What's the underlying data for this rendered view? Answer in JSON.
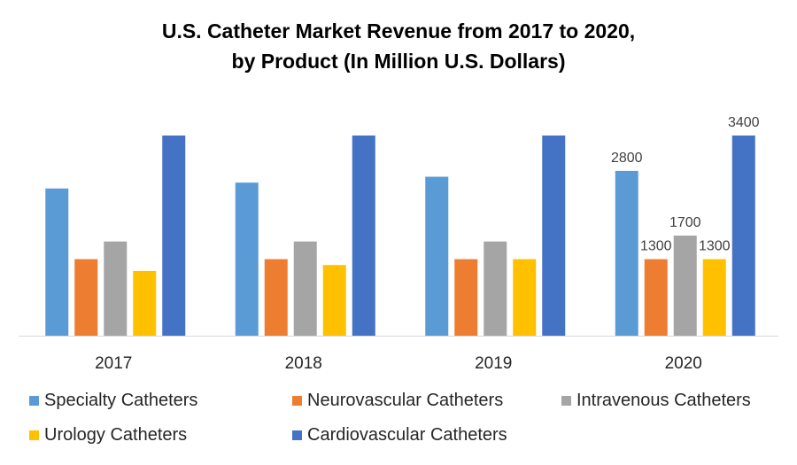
{
  "chart_data": {
    "type": "bar",
    "title": "U.S. Catheter Market Revenue from 2017 to 2020,",
    "subtitle": "by Product (In Million U.S. Dollars)",
    "categories": [
      "2017",
      "2018",
      "2019",
      "2020"
    ],
    "series": [
      {
        "name": "Specialty Catheters",
        "color": "#5B9BD5",
        "values": [
          2500,
          2600,
          2700,
          2800
        ]
      },
      {
        "name": "Neurovascular Catheters",
        "color": "#ED7D31",
        "values": [
          1300,
          1300,
          1300,
          1300
        ]
      },
      {
        "name": "Intravenous Catheters",
        "color": "#A5A5A5",
        "values": [
          1600,
          1600,
          1600,
          1700
        ]
      },
      {
        "name": "Urology Catheters",
        "color": "#FFC000",
        "values": [
          1100,
          1200,
          1300,
          1300
        ]
      },
      {
        "name": "Cardiovascular Catheters",
        "color": "#4472C4",
        "values": [
          3400,
          3400,
          3400,
          3400
        ]
      }
    ],
    "data_labels_shown_for": [
      "2020"
    ],
    "ylim": [
      0,
      3400
    ],
    "grid": false,
    "y_axis_visible": false,
    "legend": "bottom"
  }
}
